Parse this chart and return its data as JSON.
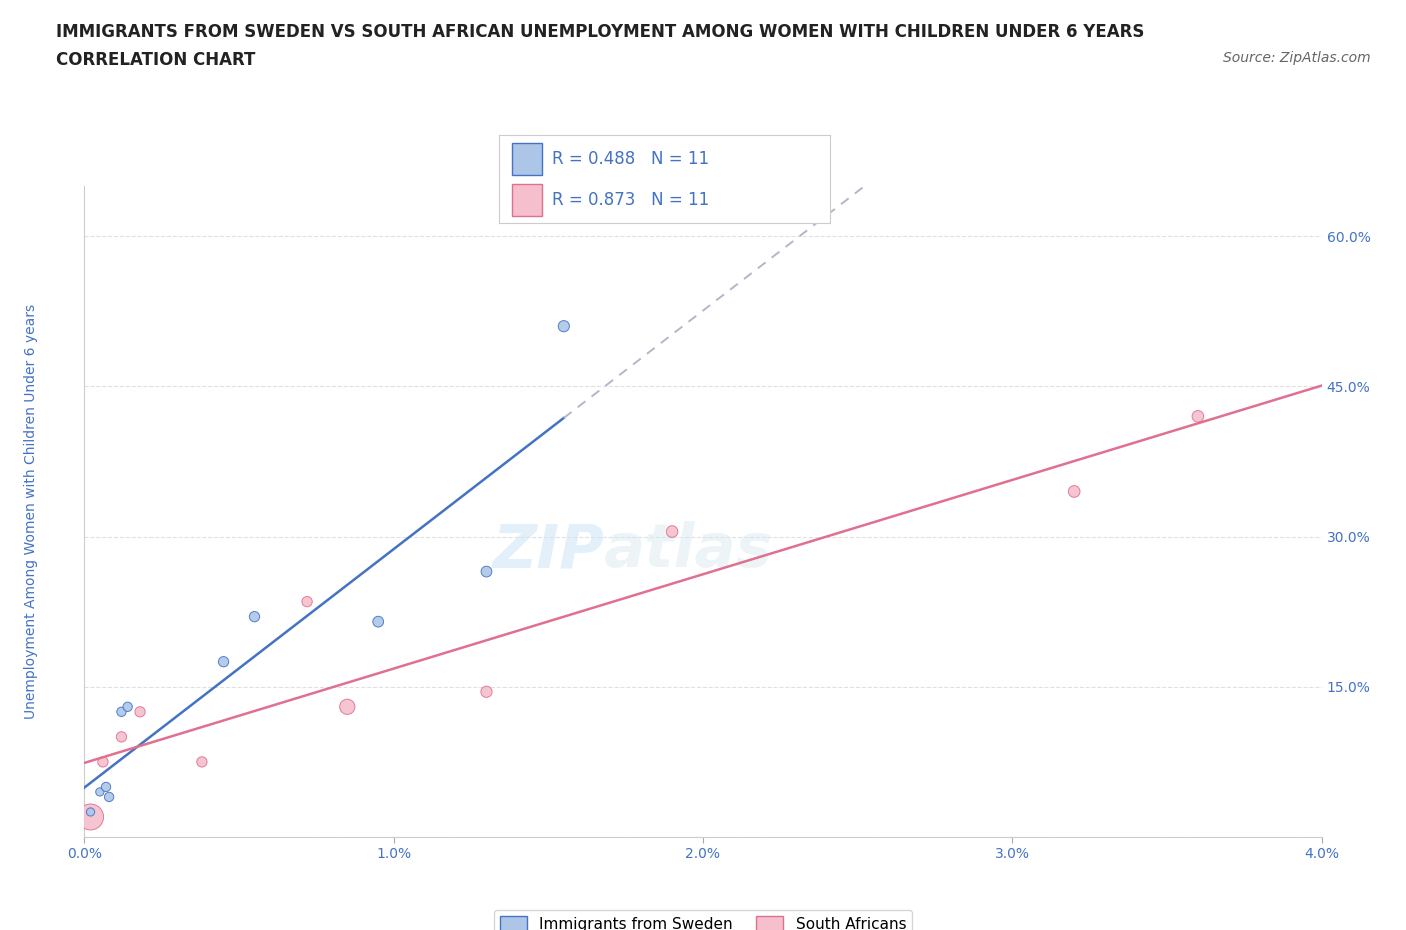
{
  "title_line1": "IMMIGRANTS FROM SWEDEN VS SOUTH AFRICAN UNEMPLOYMENT AMONG WOMEN WITH CHILDREN UNDER 6 YEARS",
  "title_line2": "CORRELATION CHART",
  "source_text": "Source: ZipAtlas.com",
  "ylabel": "Unemployment Among Women with Children Under 6 years",
  "xlim": [
    0.0,
    0.04
  ],
  "ylim": [
    0.0,
    0.65
  ],
  "xticks": [
    0.0,
    0.01,
    0.02,
    0.03,
    0.04
  ],
  "xtick_labels": [
    "0.0%",
    "1.0%",
    "2.0%",
    "3.0%",
    "4.0%"
  ],
  "yticks": [
    0.0,
    0.15,
    0.3,
    0.45,
    0.6
  ],
  "ytick_labels": [
    "",
    "15.0%",
    "30.0%",
    "45.0%",
    "60.0%"
  ],
  "blue_x": [
    0.0002,
    0.0005,
    0.0007,
    0.0008,
    0.0012,
    0.0014,
    0.0045,
    0.0055,
    0.0095,
    0.013,
    0.0155
  ],
  "blue_y": [
    0.025,
    0.045,
    0.05,
    0.04,
    0.125,
    0.13,
    0.175,
    0.22,
    0.215,
    0.265,
    0.51
  ],
  "pink_x": [
    0.0002,
    0.0006,
    0.0012,
    0.0018,
    0.0038,
    0.0072,
    0.0085,
    0.013,
    0.019,
    0.032,
    0.036
  ],
  "pink_y": [
    0.02,
    0.075,
    0.1,
    0.125,
    0.075,
    0.235,
    0.13,
    0.145,
    0.305,
    0.345,
    0.42
  ],
  "blue_sizes": [
    35,
    35,
    45,
    45,
    45,
    45,
    55,
    55,
    60,
    60,
    65
  ],
  "pink_sizes": [
    350,
    55,
    55,
    55,
    55,
    55,
    120,
    65,
    70,
    70,
    70
  ],
  "blue_color": "#adc6e8",
  "pink_color": "#f5bfcd",
  "blue_line_color": "#4472c4",
  "pink_line_color": "#e07090",
  "blue_dashed_color": "#b0b8c8",
  "R_blue": 0.488,
  "R_pink": 0.873,
  "N_blue": 11,
  "N_pink": 11,
  "legend_labels": [
    "Immigrants from Sweden",
    "South Africans"
  ],
  "watermark_part1": "ZIP",
  "watermark_part2": "atlas",
  "background_color": "#ffffff",
  "grid_color": "#e0e0e0",
  "title_color": "#222222",
  "axis_label_color": "#4472c4",
  "tick_color": "#4472c4",
  "font_size_title": 12,
  "font_size_axis": 10,
  "font_size_ticks": 10,
  "font_size_legend_box": 12,
  "font_size_bottom_legend": 11,
  "font_size_source": 10
}
